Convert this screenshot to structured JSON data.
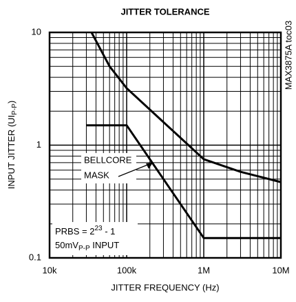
{
  "chart_data": {
    "type": "line",
    "title": "JITTER TOLERANCE",
    "x_label": "JITTER FREQUENCY (Hz)",
    "y_label": [
      "INPUT JITTER (UI",
      "P-P",
      ")"
    ],
    "side_note": "MAX3875A toc03",
    "annotations": {
      "mask_label": [
        "BELLCORE",
        "MASK"
      ],
      "prbs": [
        "PRBS = 2",
        "23",
        " - 1"
      ],
      "input": [
        "50mV",
        "P-P",
        " INPUT"
      ]
    },
    "xscale": "log",
    "yscale": "log",
    "grid": true,
    "xlim": [
      10000,
      10000000
    ],
    "ylim": [
      0.1,
      10
    ],
    "xticks": [
      {
        "value": 10000,
        "label": "10k"
      },
      {
        "value": 100000,
        "label": "100k"
      },
      {
        "value": 1000000,
        "label": "1M"
      },
      {
        "value": 10000000,
        "label": "10M"
      }
    ],
    "yticks": [
      0.1,
      1,
      10
    ],
    "series": [
      {
        "color": "#000000",
        "x": [
          35000,
          60000,
          100000,
          300000,
          1000000,
          3000000,
          10000000
        ],
        "values": [
          10,
          5,
          3.2,
          1.6,
          0.75,
          0.58,
          0.47
        ]
      },
      {
        "color": "#000000",
        "x": [
          30000,
          100000,
          1000000,
          10000000
        ],
        "values": [
          1.5,
          1.5,
          0.15,
          0.15
        ]
      }
    ]
  }
}
